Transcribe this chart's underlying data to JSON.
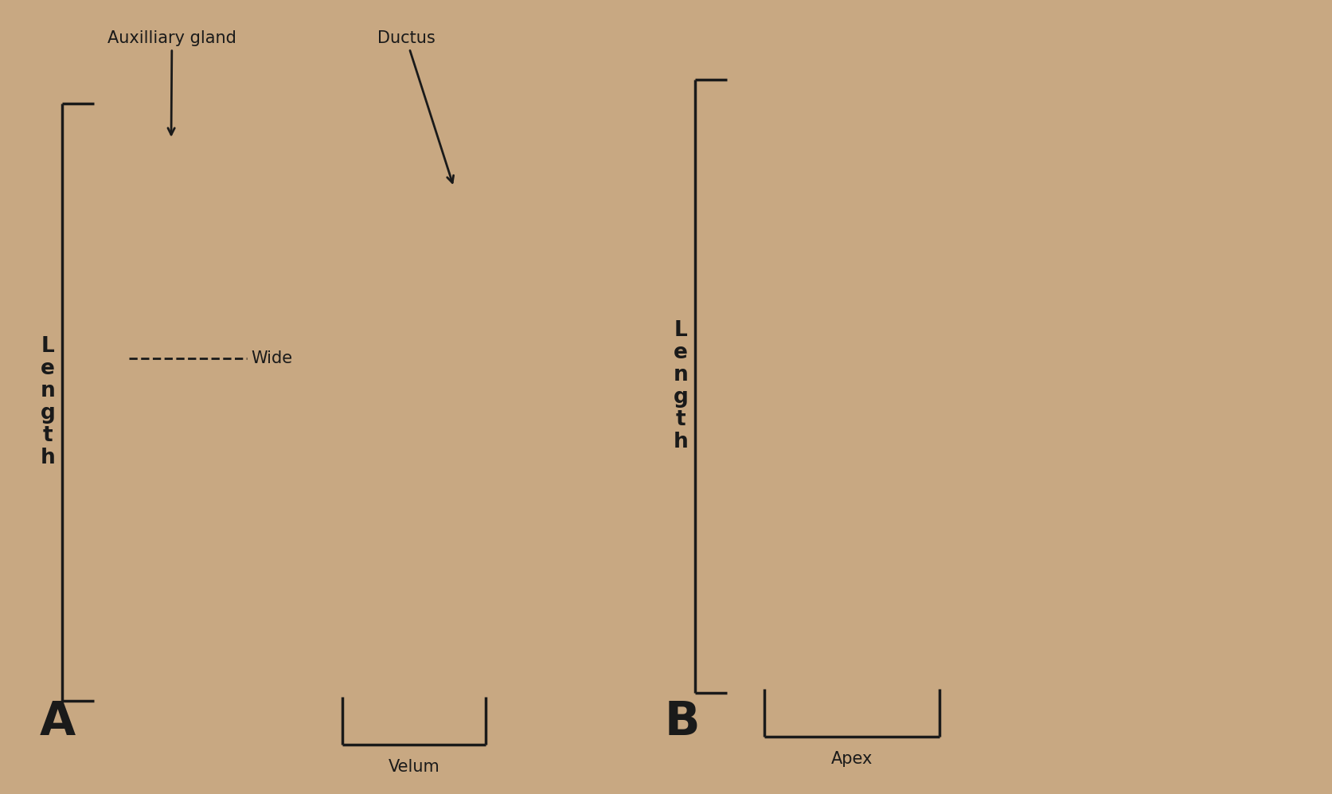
{
  "bg_color": "#C8A882",
  "fig_width": 16.74,
  "fig_height": 9.97,
  "panel_A_label": "A",
  "panel_B_label": "B",
  "label_aux_gland": "Auxilliary gland",
  "label_ductus": "Ductus",
  "label_wide": "Wide",
  "label_velum": "Velum",
  "label_apex": "Apex",
  "label_length": "L\ne\nn\ng\nt\nh",
  "line_color": "#1a1a1a",
  "text_color": "#1a1a1a",
  "font_size_label": 18,
  "font_size_panel": 42,
  "font_size_annot": 15
}
